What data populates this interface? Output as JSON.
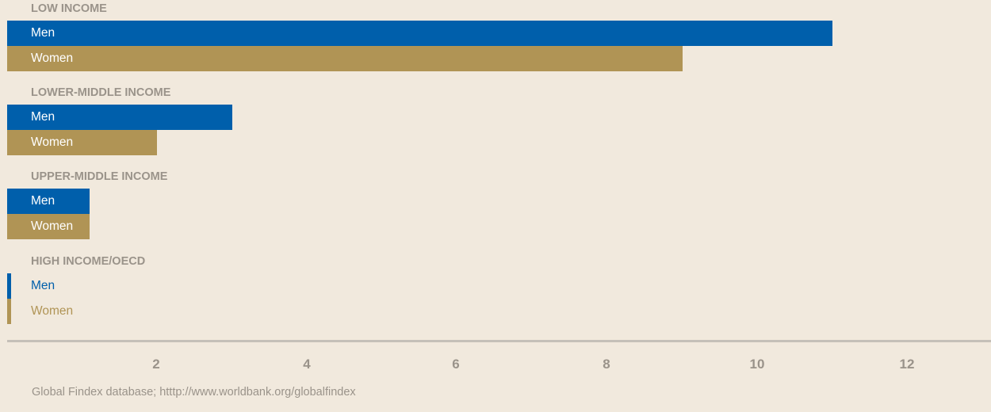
{
  "chart_data": {
    "type": "bar",
    "orientation": "horizontal",
    "groups": [
      {
        "label": "LOW INCOME",
        "bars": [
          {
            "series": "Men",
            "value": 11
          },
          {
            "series": "Women",
            "value": 9
          }
        ]
      },
      {
        "label": "LOWER-MIDDLE INCOME",
        "bars": [
          {
            "series": "Men",
            "value": 3
          },
          {
            "series": "Women",
            "value": 2
          }
        ]
      },
      {
        "label": "UPPER-MIDDLE INCOME",
        "bars": [
          {
            "series": "Men",
            "value": 1.1
          },
          {
            "series": "Women",
            "value": 1.1
          }
        ]
      },
      {
        "label": "HIGH INCOME/OECD",
        "bars": [
          {
            "series": "Men",
            "value": 0.05
          },
          {
            "series": "Women",
            "value": 0.05
          }
        ]
      }
    ],
    "series_colors": {
      "Men": "#005fab",
      "Women": "#b09455"
    },
    "x_ticks": [
      "2",
      "4",
      "6",
      "8",
      "10",
      "12"
    ],
    "xlim": [
      0,
      12
    ],
    "grid": false
  },
  "source": "Global Findex database; htttp://www.worldbank.org/globalfindex"
}
